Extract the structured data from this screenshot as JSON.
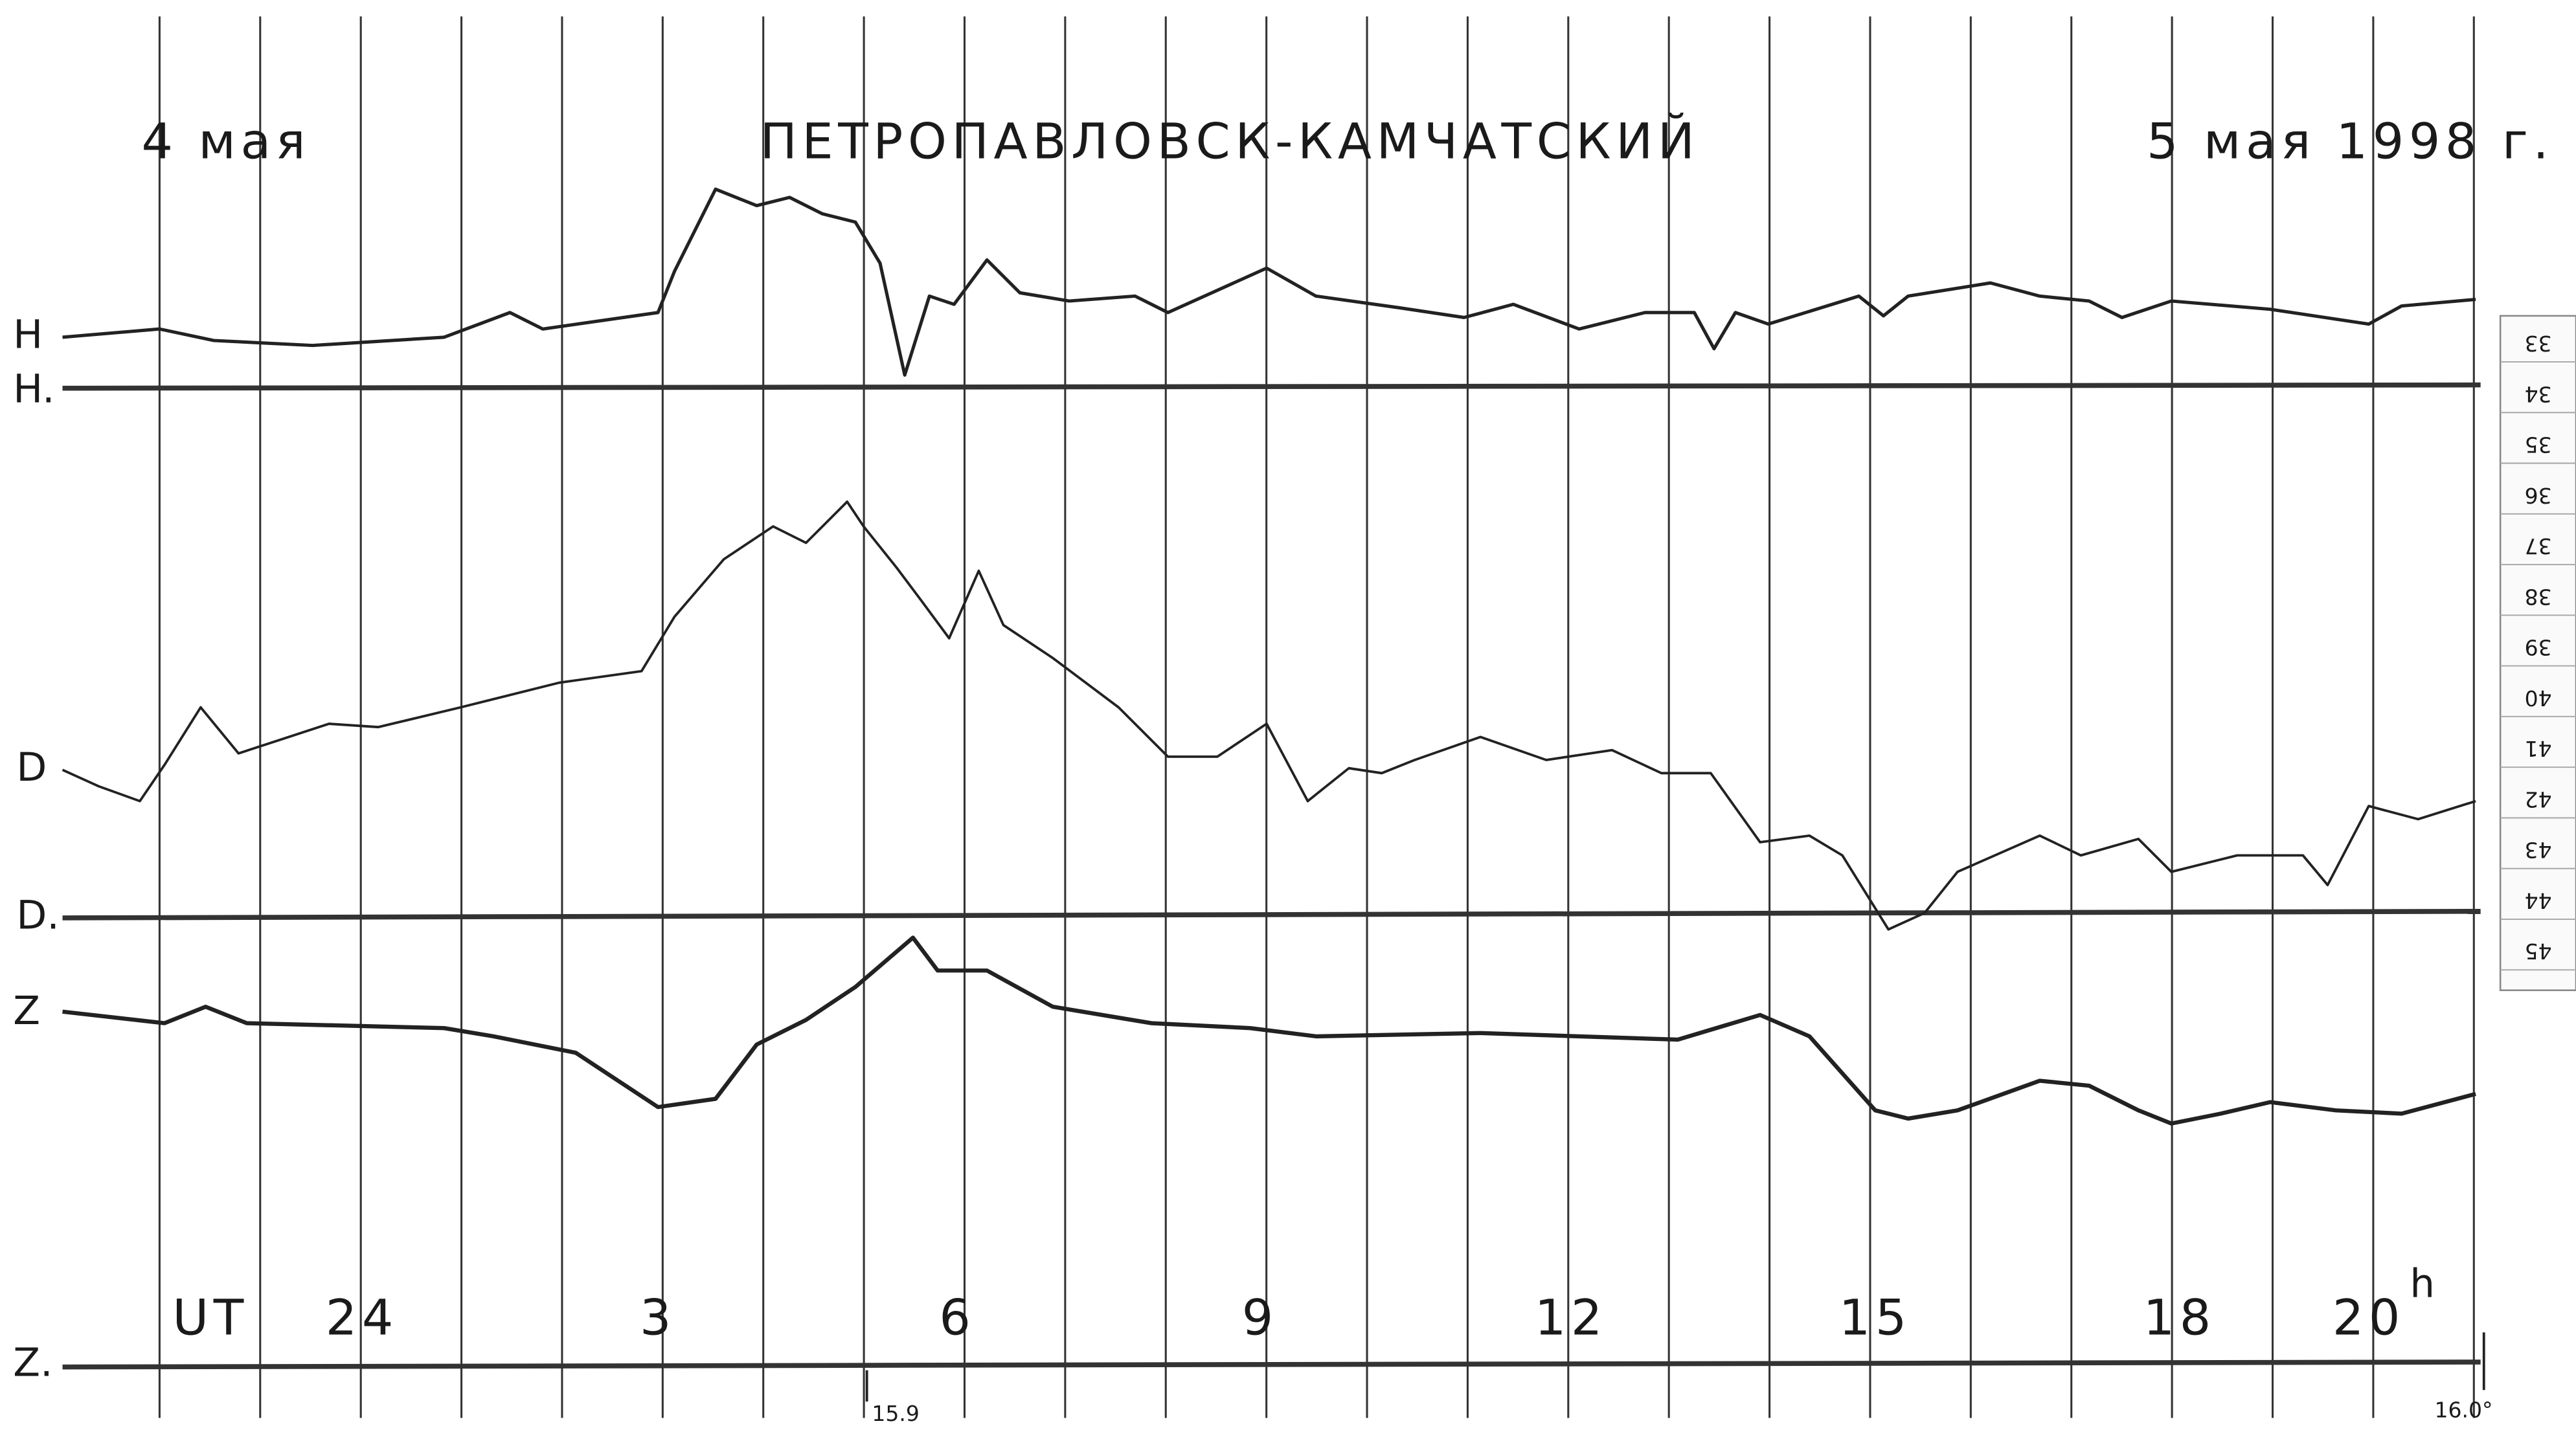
{
  "header": {
    "title": "ПЕТРОПАВЛОВСК-КАМЧАТСКИЙ",
    "date_left": "4 мая",
    "date_right": "5 мая 1998 г."
  },
  "traces": [
    {
      "label": "H",
      "baseline_label": "H."
    },
    {
      "label": "D",
      "baseline_label": "D."
    },
    {
      "label": "Z",
      "baseline_label": "Z."
    }
  ],
  "time_axis": {
    "labels": [
      "UT",
      "24",
      "3",
      "6",
      "9",
      "12",
      "15",
      "18",
      "20"
    ],
    "unit": "h"
  },
  "scale": {
    "labels": [
      33,
      34,
      35,
      36,
      37,
      38,
      39,
      40,
      41,
      42,
      43,
      44,
      45
    ]
  },
  "annotations": [
    "15.9",
    "16.0°"
  ]
}
